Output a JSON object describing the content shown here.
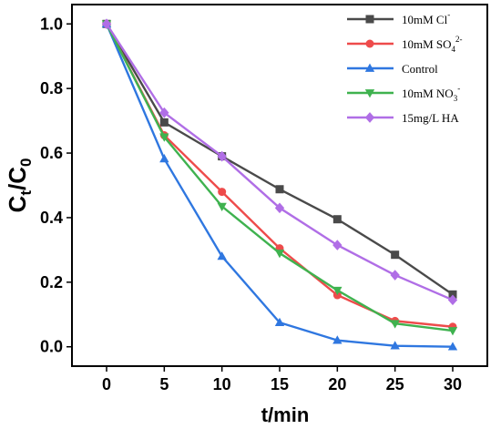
{
  "chart_data": {
    "type": "line",
    "x": [
      0,
      5,
      10,
      15,
      20,
      25,
      30
    ],
    "xlabel": "t/min",
    "ylabel": {
      "main": "C",
      "sub1": "t",
      "slash": "/C",
      "sub2": "0"
    },
    "xlim": [
      -3,
      33
    ],
    "ylim": [
      -0.06,
      1.06
    ],
    "xticks": [
      "0",
      "5",
      "10",
      "15",
      "20",
      "25",
      "30"
    ],
    "yticks": [
      "0.0",
      "0.2",
      "0.4",
      "0.6",
      "0.8",
      "1.0"
    ],
    "grid": false,
    "legend_position": "top-right",
    "series": [
      {
        "key": "cl",
        "name": "10mM Cl",
        "sup": "-",
        "color": "#4a4a4a",
        "marker": "square",
        "values": [
          1.0,
          0.695,
          0.59,
          0.488,
          0.395,
          0.285,
          0.162
        ]
      },
      {
        "key": "so4",
        "name": "10mM SO",
        "sub": "4",
        "sup": "2-",
        "color": "#ee4b4b",
        "marker": "circle",
        "values": [
          1.0,
          0.655,
          0.48,
          0.305,
          0.16,
          0.08,
          0.062
        ]
      },
      {
        "key": "control",
        "name": "Control",
        "color": "#2f77e0",
        "marker": "triangle-up",
        "values": [
          1.0,
          0.582,
          0.28,
          0.075,
          0.02,
          0.003,
          0.0
        ]
      },
      {
        "key": "no3",
        "name": "10mM NO",
        "sub": "3",
        "sup": "-",
        "color": "#3fb24f",
        "marker": "triangle-down",
        "values": [
          1.0,
          0.65,
          0.435,
          0.29,
          0.175,
          0.072,
          0.05
        ]
      },
      {
        "key": "ha",
        "name": "15mg/L HA",
        "color": "#b06ee6",
        "marker": "diamond",
        "values": [
          1.0,
          0.725,
          0.59,
          0.43,
          0.315,
          0.222,
          0.145
        ]
      }
    ]
  }
}
